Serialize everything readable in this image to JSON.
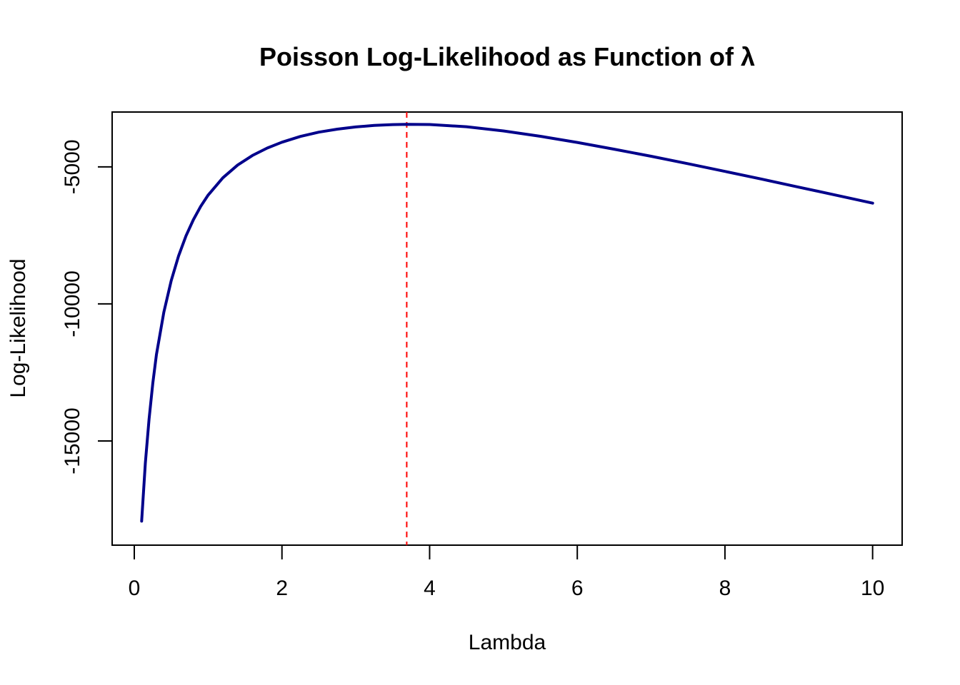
{
  "chart_data": {
    "type": "line",
    "title": "Poisson Log-Likelihood as Function of λ",
    "xlabel": "Lambda",
    "ylabel": "Log-Likelihood",
    "xlim": [
      -0.3,
      10.4
    ],
    "ylim": [
      -18800,
      -3000
    ],
    "x_ticks": [
      0,
      2,
      4,
      6,
      8,
      10
    ],
    "x_tick_labels": [
      "0",
      "2",
      "4",
      "6",
      "8",
      "10"
    ],
    "y_ticks": [
      -15000,
      -10000,
      -5000
    ],
    "y_tick_labels": [
      "-15000",
      "-10000",
      "-5000"
    ],
    "grid": false,
    "legend": "none",
    "series": [
      {
        "color": "#00008B",
        "x": [
          0.1,
          0.15,
          0.2,
          0.25,
          0.3,
          0.4,
          0.5,
          0.6,
          0.7,
          0.8,
          0.9,
          1.0,
          1.2,
          1.4,
          1.6,
          1.8,
          2.0,
          2.25,
          2.5,
          2.75,
          3.0,
          3.25,
          3.5,
          3.69,
          4.0,
          4.5,
          5.0,
          5.5,
          6.0,
          6.5,
          7.0,
          7.5,
          8.0,
          8.5,
          9.0,
          9.5,
          10.0
        ],
        "y": [
          -17925,
          -15800,
          -14200,
          -12900,
          -11850,
          -10300,
          -9150,
          -8250,
          -7520,
          -6930,
          -6440,
          -6030,
          -5400,
          -4935,
          -4585,
          -4315,
          -4100,
          -3890,
          -3735,
          -3625,
          -3545,
          -3490,
          -3457,
          -3447,
          -3455,
          -3535,
          -3690,
          -3885,
          -4110,
          -4355,
          -4615,
          -4885,
          -5165,
          -5450,
          -5740,
          -6030,
          -6325
        ]
      }
    ],
    "reference_lines": [
      {
        "orientation": "vertical",
        "x": 3.69,
        "color": "#FF0000",
        "style": "dashed"
      }
    ]
  }
}
